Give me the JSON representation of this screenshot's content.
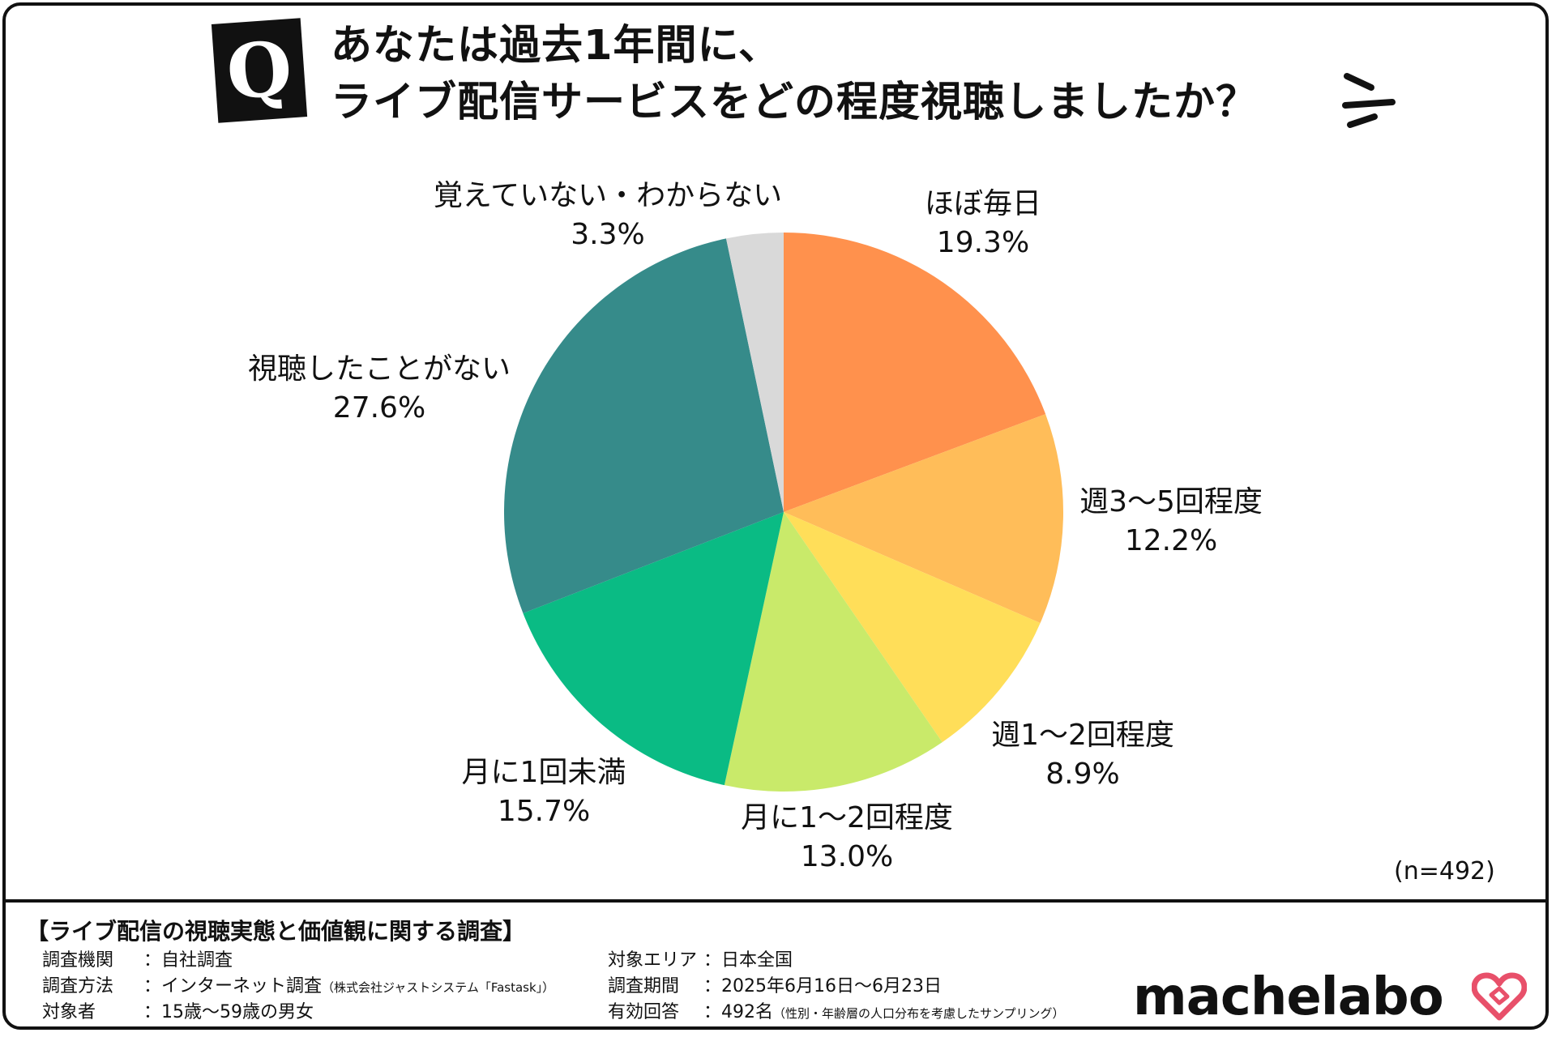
{
  "title": {
    "badge": "Q",
    "line1": "あなたは過去1年間に、",
    "line2": "ライブ配信サービスをどの程度視聴しましたか？"
  },
  "chart_data": {
    "type": "pie",
    "slices": [
      {
        "label": "ほぼ毎日",
        "value": 19.3,
        "pct": "19.3%",
        "color": "#FF914D"
      },
      {
        "label": "週3～5回程度",
        "value": 12.2,
        "pct": "12.2%",
        "color": "#FFBD59"
      },
      {
        "label": "週1～2回程度",
        "value": 8.9,
        "pct": "8.9%",
        "color": "#FFDE59"
      },
      {
        "label": "月に1～2回程度",
        "value": 13.0,
        "pct": "13.0%",
        "color": "#C9EA6A"
      },
      {
        "label": "月に1回未満",
        "value": 15.7,
        "pct": "15.7%",
        "color": "#0ABB84"
      },
      {
        "label": "視聴したことがない",
        "value": 27.6,
        "pct": "27.6%",
        "color": "#368B8A"
      },
      {
        "label": "覚えていない・わからない",
        "value": 3.3,
        "pct": "3.3%",
        "color": "#D9D9D9"
      }
    ],
    "sample": "(n=492)"
  },
  "footer": {
    "survey_title": "【ライブ配信の視聴実態と価値観に関する調査】",
    "left": [
      {
        "key": "調査機関",
        "value": "：自社調査",
        "note": ""
      },
      {
        "key": "調査方法",
        "value": "：インターネット調査",
        "note": "（株式会社ジャストシステム「Fastask」）"
      },
      {
        "key": "対象者",
        "value": "：15歳～59歳の男女",
        "note": ""
      }
    ],
    "right": [
      {
        "key": "対象エリア",
        "value": "：日本全国",
        "note": ""
      },
      {
        "key": "調査期間",
        "value": "：2025年6月16日～6月23日",
        "note": ""
      },
      {
        "key": "有効回答",
        "value": "：492名",
        "note": "（性別・年齢層の人口分布を考慮したサンプリング）"
      }
    ],
    "logo": "machelabo"
  }
}
